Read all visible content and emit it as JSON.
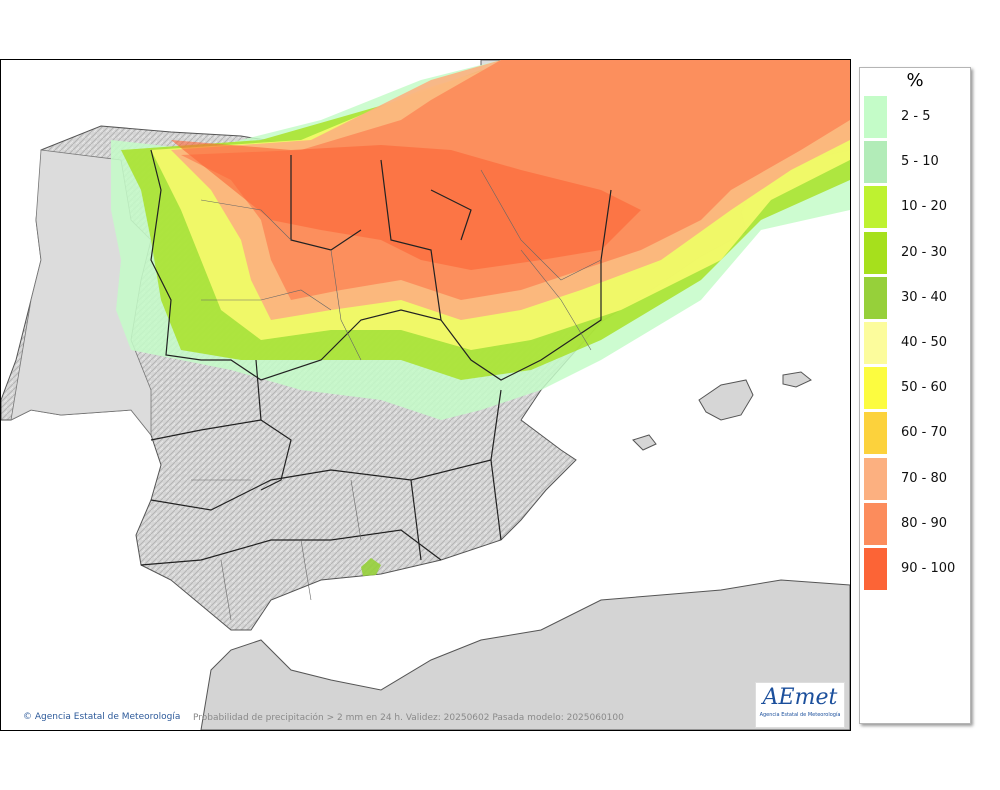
{
  "map": {
    "credit": "Agencia Estatal de Meteorología",
    "caption": "Probabilidad de precipitación > 2 mm en 24 h. Validez: 20250602 Pasada modelo: 2025060100",
    "logo_text": "AEmet",
    "logo_subtext": "Agencia Estatal de Meteorología"
  },
  "legend": {
    "title": "%",
    "items": [
      {
        "label": "2 - 5",
        "color": "#c4fcc8"
      },
      {
        "label": "5 - 10",
        "color": "#b2ecb8"
      },
      {
        "label": "10 - 20",
        "color": "#bef230"
      },
      {
        "label": "20 - 30",
        "color": "#a6e01c"
      },
      {
        "label": "30 - 40",
        "color": "#96d03a"
      },
      {
        "label": "40 - 50",
        "color": "#fcfc9c"
      },
      {
        "label": "50 - 60",
        "color": "#fcfc40"
      },
      {
        "label": "60 - 70",
        "color": "#fcd23c"
      },
      {
        "label": "70 - 80",
        "color": "#fcb080"
      },
      {
        "label": "80 - 90",
        "color": "#fc8c5c"
      },
      {
        "label": "90 - 100",
        "color": "#fc6436"
      }
    ]
  }
}
